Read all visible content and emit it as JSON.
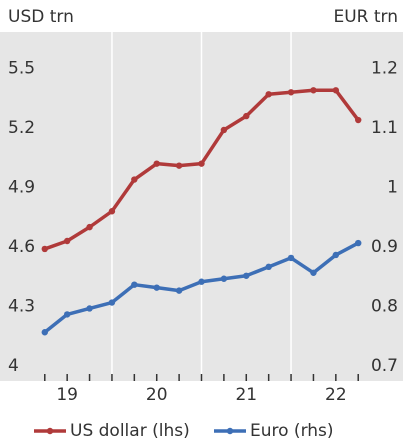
{
  "chart_data": {
    "type": "line",
    "y_label": "USD trn",
    "y2_label": "EUR trn",
    "x": [
      2019.25,
      2019.5,
      2019.75,
      2020,
      2020.25,
      2020.5,
      2020.75,
      2021,
      2021.25,
      2021.5,
      2021.75,
      2022,
      2022.25,
      2022.5,
      2022.75
    ],
    "series": [
      {
        "name": "US dollar (lhs)",
        "color": "#b03a3a",
        "values": [
          4.6,
          4.64,
          4.71,
          4.79,
          4.95,
          5.03,
          5.02,
          5.03,
          5.2,
          5.27,
          5.38,
          5.39,
          5.4,
          5.4,
          5.25
        ]
      },
      {
        "name": "Euro (rhs)",
        "color": "#3d6fb6",
        "axis": "y2",
        "values": [
          0.76,
          0.79,
          0.8,
          0.81,
          0.84,
          0.835,
          0.83,
          0.845,
          0.85,
          0.855,
          0.87,
          0.885,
          0.86,
          0.89,
          0.91
        ]
      }
    ],
    "xlim": [
      2018.75,
      2023.25
    ],
    "xticks": [
      {
        "value": 2019.5,
        "label": "19"
      },
      {
        "value": 2020.5,
        "label": "20"
      },
      {
        "value": 2021.5,
        "label": "21"
      },
      {
        "value": 2022.5,
        "label": "22"
      }
    ],
    "xgrid": [
      2020,
      2021,
      2022
    ],
    "ylim": [
      3.934,
      5.694
    ],
    "yticks": [
      4,
      4.3,
      4.6,
      4.9,
      5.2,
      5.5
    ],
    "y2lim": [
      0.678,
      1.265
    ],
    "y2ticks": [
      0.7,
      0.8,
      0.9,
      1,
      1.1,
      1.2
    ],
    "legend": "bottom"
  }
}
